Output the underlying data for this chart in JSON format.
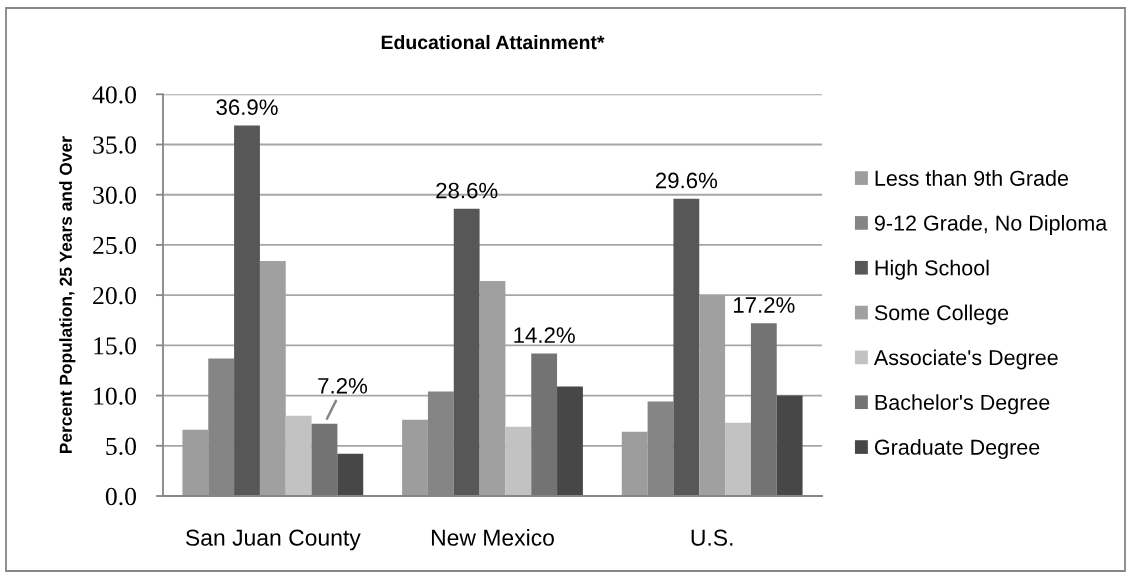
{
  "chart_data": {
    "type": "bar",
    "title": "Educational Attainment*",
    "ylabel": "Percent Population, 25 Years and Over",
    "categories": [
      "San Juan County",
      "New Mexico",
      "U.S."
    ],
    "series": [
      {
        "name": "Less than 9th Grade",
        "color": "#9d9d9d",
        "values": [
          6.6,
          7.6,
          6.4
        ]
      },
      {
        "name": "9-12 Grade, No Diploma",
        "color": "#858585",
        "values": [
          13.7,
          10.4,
          9.4
        ]
      },
      {
        "name": "High School",
        "color": "#575757",
        "values": [
          36.9,
          28.6,
          29.6
        ],
        "value_labels": [
          "36.9%",
          "28.6%",
          "29.6%"
        ]
      },
      {
        "name": "Some College",
        "color": "#a0a0a0",
        "values": [
          23.4,
          21.4,
          20.0
        ]
      },
      {
        "name": "Associate's Degree",
        "color": "#c2c2c2",
        "values": [
          8.0,
          6.9,
          7.3
        ]
      },
      {
        "name": "Bachelor's Degree",
        "color": "#737373",
        "values": [
          7.2,
          14.2,
          17.2
        ],
        "value_labels": [
          "7.2%",
          "14.2%",
          "17.2%"
        ]
      },
      {
        "name": "Graduate Degree",
        "color": "#474747",
        "values": [
          4.2,
          10.9,
          10.0
        ]
      }
    ],
    "ylim": [
      0,
      40
    ],
    "yticks": [
      {
        "value": 0,
        "label": "0.0"
      },
      {
        "value": 5,
        "label": "5.0"
      },
      {
        "value": 10,
        "label": "10.0"
      },
      {
        "value": 15,
        "label": "15.0"
      },
      {
        "value": 20,
        "label": "20.0"
      },
      {
        "value": 25,
        "label": "25.0"
      },
      {
        "value": 30,
        "label": "30.0"
      },
      {
        "value": 35,
        "label": "35.0"
      },
      {
        "value": 40,
        "label": "40.0"
      }
    ],
    "grid": "y",
    "legend": "right"
  }
}
